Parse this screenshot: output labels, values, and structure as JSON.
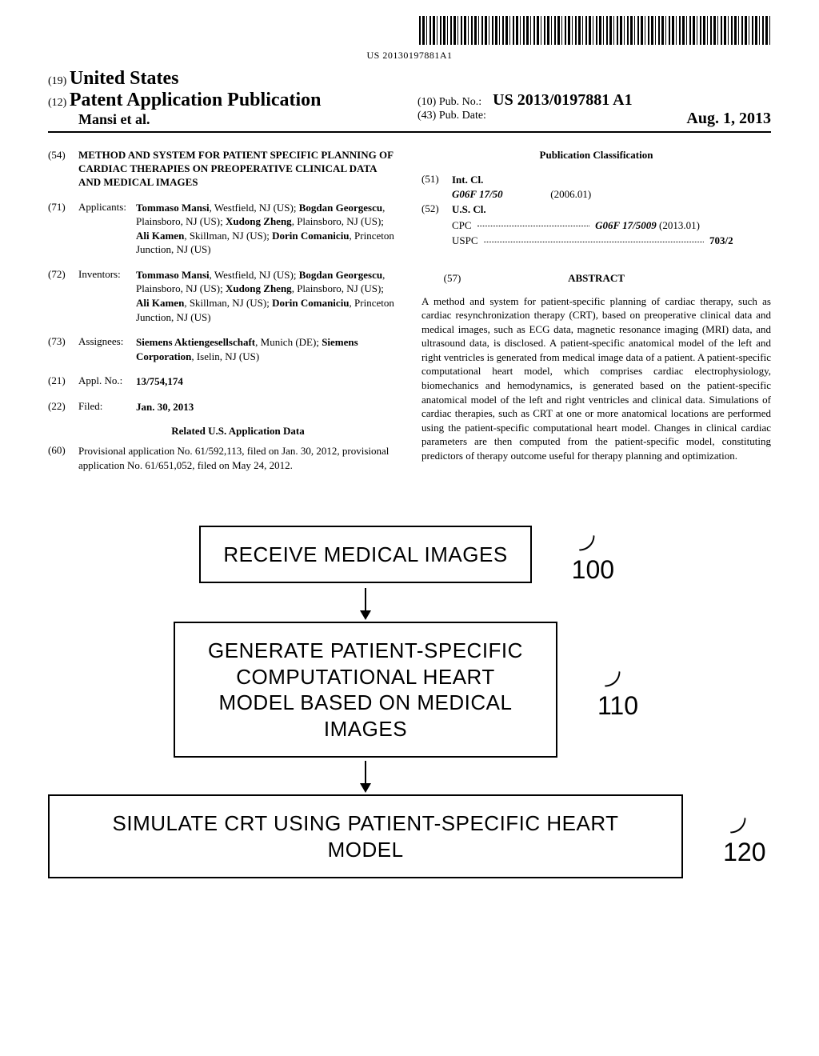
{
  "barcode": {
    "text": "US 20130197881A1"
  },
  "header": {
    "country_num": "(19)",
    "country": "United States",
    "pub_type_num": "(12)",
    "pub_type": "Patent Application Publication",
    "author_line": "Mansi et al.",
    "pubno_num": "(10)",
    "pubno_label": "Pub. No.:",
    "pubno_val": "US 2013/0197881 A1",
    "pubdate_num": "(43)",
    "pubdate_label": "Pub. Date:",
    "pubdate_val": "Aug. 1, 2013"
  },
  "left": {
    "title_num": "(54)",
    "title": "METHOD AND SYSTEM FOR PATIENT SPECIFIC PLANNING OF CARDIAC THERAPIES ON PREOPERATIVE CLINICAL DATA AND MEDICAL IMAGES",
    "applicants_num": "(71)",
    "applicants_label": "Applicants:",
    "applicants": [
      {
        "name": "Tommaso Mansi",
        "loc": ", Westfield, NJ (US); "
      },
      {
        "name": "Bogdan Georgescu",
        "loc": ", Plainsboro, NJ (US); "
      },
      {
        "name": "Xudong Zheng",
        "loc": ", Plainsboro, NJ (US); "
      },
      {
        "name": "Ali Kamen",
        "loc": ", Skillman, NJ (US); "
      },
      {
        "name": "Dorin Comaniciu",
        "loc": ", Princeton Junction, NJ (US)"
      }
    ],
    "inventors_num": "(72)",
    "inventors_label": "Inventors:",
    "inventors": [
      {
        "name": "Tommaso Mansi",
        "loc": ", Westfield, NJ (US); "
      },
      {
        "name": "Bogdan Georgescu",
        "loc": ", Plainsboro, NJ (US); "
      },
      {
        "name": "Xudong Zheng",
        "loc": ", Plainsboro, NJ (US); "
      },
      {
        "name": "Ali Kamen",
        "loc": ", Skillman, NJ (US); "
      },
      {
        "name": "Dorin Comaniciu",
        "loc": ", Princeton Junction, NJ (US)"
      }
    ],
    "assignees_num": "(73)",
    "assignees_label": "Assignees:",
    "assignees": [
      {
        "name": "Siemens Aktiengesellschaft",
        "loc": ", Munich (DE); "
      },
      {
        "name": "Siemens Corporation",
        "loc": ", Iselin, NJ (US)"
      }
    ],
    "applno_num": "(21)",
    "applno_label": "Appl. No.:",
    "applno_val": "13/754,174",
    "filed_num": "(22)",
    "filed_label": "Filed:",
    "filed_val": "Jan. 30, 2013",
    "related_heading": "Related U.S. Application Data",
    "provisional_num": "(60)",
    "provisional_text": "Provisional application No. 61/592,113, filed on Jan. 30, 2012, provisional application No. 61/651,052, filed on May 24, 2012."
  },
  "right": {
    "pub_class_heading": "Publication Classification",
    "intcl_num": "(51)",
    "intcl_label": "Int. Cl.",
    "intcl_code": "G06F 17/50",
    "intcl_year": "(2006.01)",
    "uscl_num": "(52)",
    "uscl_label": "U.S. Cl.",
    "cpc_label": "CPC",
    "cpc_val": "G06F 17/5009",
    "cpc_year": "(2013.01)",
    "uspc_label": "USPC",
    "uspc_val": "703/2",
    "abstract_num": "(57)",
    "abstract_heading": "ABSTRACT",
    "abstract_text": "A method and system for patient-specific planning of cardiac therapy, such as cardiac resynchronization therapy (CRT), based on preoperative clinical data and medical images, such as ECG data, magnetic resonance imaging (MRI) data, and ultrasound data, is disclosed. A patient-specific anatomical model of the left and right ventricles is generated from medical image data of a patient. A patient-specific computational heart model, which comprises cardiac electrophysiology, biomechanics and hemodynamics, is generated based on the patient-specific anatomical model of the left and right ventricles and clinical data. Simulations of cardiac therapies, such as CRT at one or more anatomical locations are performed using the patient-specific computational heart model. Changes in clinical cardiac parameters are then computed from the patient-specific model, constituting predictors of therapy outcome useful for therapy planning and optimization."
  },
  "flowchart": {
    "type": "flowchart",
    "border_color": "#000000",
    "border_width": 2,
    "background_color": "#ffffff",
    "font_family": "Arial",
    "box_fontsize": 26,
    "label_fontsize": 32,
    "nodes": [
      {
        "id": "100",
        "text": "RECEIVE MEDICAL IMAGES",
        "label": "100"
      },
      {
        "id": "110",
        "text": "GENERATE PATIENT-SPECIFIC COMPUTATIONAL HEART MODEL BASED ON MEDICAL IMAGES",
        "label": "110"
      },
      {
        "id": "120",
        "text": "SIMULATE CRT USING PATIENT-SPECIFIC HEART MODEL",
        "label": "120"
      }
    ],
    "edges": [
      {
        "from": "100",
        "to": "110"
      },
      {
        "from": "110",
        "to": "120"
      }
    ]
  }
}
